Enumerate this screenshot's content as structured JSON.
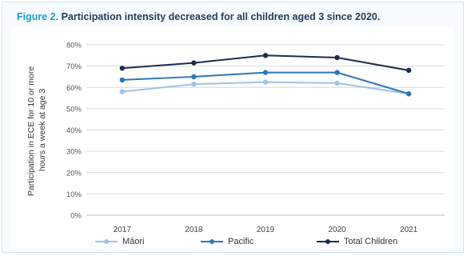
{
  "figure": {
    "label": "Figure 2.",
    "title": "Participation intensity decreased for all children aged 3 since 2020."
  },
  "chart_data": {
    "type": "line",
    "x": [
      "2017",
      "2018",
      "2019",
      "2020",
      "2021"
    ],
    "ylabel": "Participation in ECE for 10 or more hours a week at age 3",
    "ylabel_lines": [
      "Participation in ECE for 10 or more",
      "hours a week at age 3"
    ],
    "ylim": [
      0,
      80
    ],
    "yticks": [
      "0%",
      "10%",
      "20%",
      "30%",
      "40%",
      "50%",
      "60%",
      "70%",
      "80%"
    ],
    "grid": true,
    "legend_position": "bottom",
    "series": [
      {
        "name": "Māori",
        "color": "#9dc3e6",
        "values": [
          58,
          61.5,
          62.5,
          62,
          57
        ]
      },
      {
        "name": "Pacific",
        "color": "#2e75b6",
        "values": [
          63.5,
          65,
          67,
          67,
          57
        ]
      },
      {
        "name": "Total Children",
        "color": "#1f2d4e",
        "values": [
          69,
          71.5,
          75,
          74,
          68
        ]
      }
    ]
  }
}
